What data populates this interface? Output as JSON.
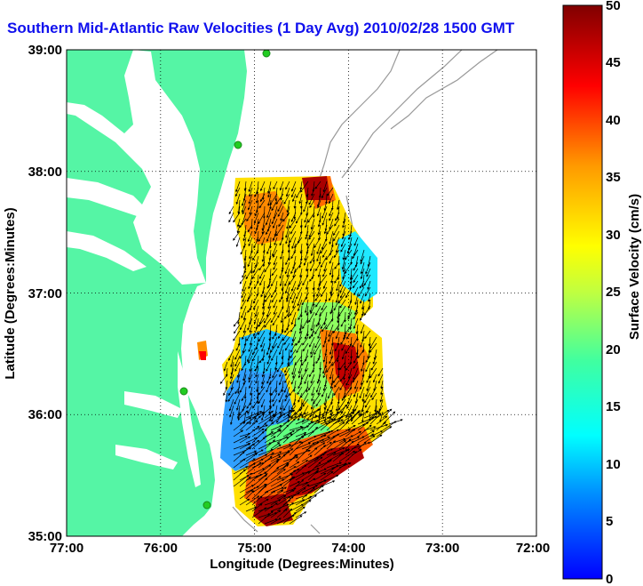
{
  "title": "Southern Mid-Atlantic Raw Velocities (1 Day Avg) 2010/02/28 1500 GMT",
  "x_axis_label": "Longitude (Degrees:Minutes)",
  "y_axis_label": "Latitude (Degrees:Minutes)",
  "x_ticks": [
    "77:00",
    "76:00",
    "75:00",
    "74:00",
    "73:00",
    "72:00"
  ],
  "y_ticks": [
    "39:00",
    "38:00",
    "37:00",
    "36:00",
    "35:00"
  ],
  "colorbar": {
    "label": "Surface Velocity (cm/s)",
    "ticks": [
      "50",
      "45",
      "40",
      "35",
      "30",
      "25",
      "20",
      "15",
      "10",
      "5",
      "0"
    ],
    "min": 0,
    "max": 50
  },
  "colors": {
    "land": "#55f5a5",
    "title": "#1010ee",
    "coast_contour": "#999999",
    "stations": "#22cc22"
  },
  "extent": {
    "lon": [
      -77,
      -72
    ],
    "lat": [
      35,
      39
    ]
  }
}
